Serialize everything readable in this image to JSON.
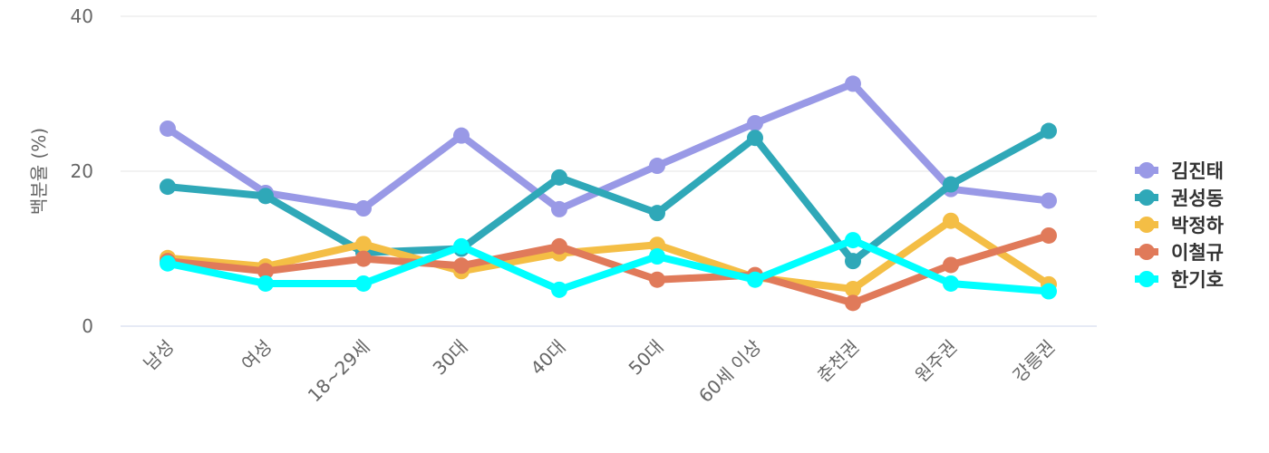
{
  "chart_data": {
    "type": "line",
    "categories": [
      "남성",
      "여성",
      "18~29세",
      "30대",
      "40대",
      "50대",
      "60세 이상",
      "춘천권",
      "원주권",
      "강릉권"
    ],
    "ylabel": "백분율 (%)",
    "xlabel": "",
    "ylim": [
      0,
      40
    ],
    "yticks": [
      "0",
      "20",
      "40"
    ],
    "grid": true,
    "legend_position": "right",
    "series": [
      {
        "name": "김진태",
        "color": "#9999e6",
        "values": [
          25.5,
          17.2,
          15.2,
          24.6,
          15.1,
          20.7,
          26.2,
          31.3,
          17.7,
          16.2
        ]
      },
      {
        "name": "권성동",
        "color": "#2fa8b8",
        "values": [
          18.0,
          16.8,
          9.5,
          10.0,
          19.2,
          14.6,
          24.3,
          8.4,
          18.3,
          25.2
        ]
      },
      {
        "name": "박정하",
        "color": "#f4be45",
        "values": [
          8.8,
          7.7,
          10.6,
          7.1,
          9.4,
          10.5,
          6.3,
          4.8,
          13.6,
          5.4
        ]
      },
      {
        "name": "이철규",
        "color": "#e07a5a",
        "values": [
          8.4,
          7.1,
          8.7,
          7.8,
          10.3,
          6.0,
          6.6,
          3.0,
          7.9,
          11.7
        ]
      },
      {
        "name": "한기호",
        "color": "#00ffff",
        "values": [
          8.1,
          5.5,
          5.5,
          10.3,
          4.7,
          9.0,
          6.0,
          11.1,
          5.5,
          4.5
        ]
      }
    ]
  }
}
